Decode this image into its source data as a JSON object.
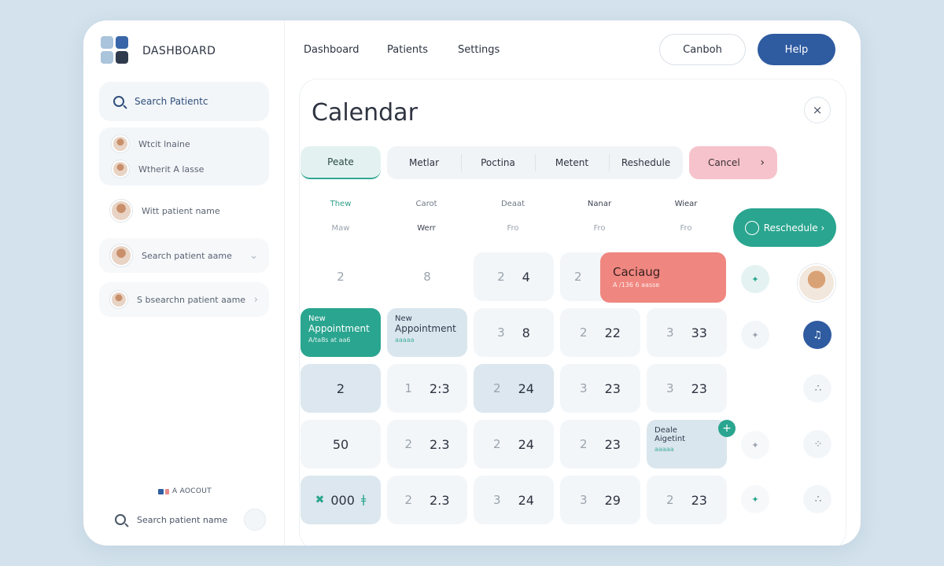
{
  "sidebar": {
    "brand": "DASHBOARD",
    "search_placeholder": "Search Patientc",
    "group_items": [
      "Wtcit lnaine",
      "Wtherit A lasse"
    ],
    "items": [
      "Witt patient name",
      "Search patient aame",
      "S bsearchn patient aame"
    ],
    "account_label": "A AOCOUT",
    "bottom_search": "Search patient name"
  },
  "nav": {
    "links": [
      "Dashboard",
      "Patients",
      "Settings"
    ],
    "btn_secondary": "Canboh",
    "btn_help": "Help"
  },
  "calendar": {
    "title": "Calendar",
    "close": "×",
    "tabs": {
      "first": "Peate",
      "group": [
        "Metlar",
        "Poctina",
        "Metent",
        "Reshedule"
      ],
      "cancel": "Cancel",
      "cancel_arrow": "›"
    },
    "col_heads": [
      "Thew",
      "Carot",
      "Deaat",
      "Nanar",
      "Wiear"
    ],
    "col_subs": [
      "Maw",
      "Werr",
      "Fro",
      "Fro",
      "Fro"
    ],
    "reschedule_btn": "Reschedule ›",
    "rows": [
      [
        "2",
        "8",
        [
          "2",
          "4"
        ],
        "2",
        null
      ],
      [
        null,
        null,
        [
          "3",
          "8"
        ],
        [
          "2",
          "22"
        ],
        [
          "3",
          "33"
        ]
      ],
      [
        "2",
        [
          "1",
          "2:3"
        ],
        [
          "2",
          "24"
        ],
        [
          "3",
          "23"
        ],
        [
          "3",
          "23"
        ]
      ],
      [
        "50",
        [
          "2",
          "2.3"
        ],
        [
          "2",
          "24"
        ],
        [
          "2",
          "23"
        ],
        null
      ],
      [
        null,
        [
          "2",
          "2.3"
        ],
        [
          "3",
          "24"
        ],
        [
          "3",
          "29"
        ],
        [
          "2",
          "23"
        ]
      ]
    ],
    "appointments": {
      "coral": {
        "title": "Caciaug",
        "sub": "A /136 6 aasse"
      },
      "green": {
        "line1": "New",
        "line2": "Appointment",
        "sub": "A/ta8s at aa6"
      },
      "light1": {
        "line1": "New",
        "line2": "Appointment",
        "sub": "aaaaa"
      },
      "light2": {
        "line1": "Deale",
        "line2": "Aigetint",
        "sub": "aaaaa"
      },
      "plus": "+"
    },
    "last_row_first": {
      "icon": "✖",
      "value": "000",
      "tail": "ǂ"
    }
  },
  "colors": {
    "accent_green": "#2aa58f",
    "accent_blue": "#2f5ba0",
    "coral": "#ef8780",
    "pink": "#f6c3cc",
    "background": "#d3e2ec"
  }
}
